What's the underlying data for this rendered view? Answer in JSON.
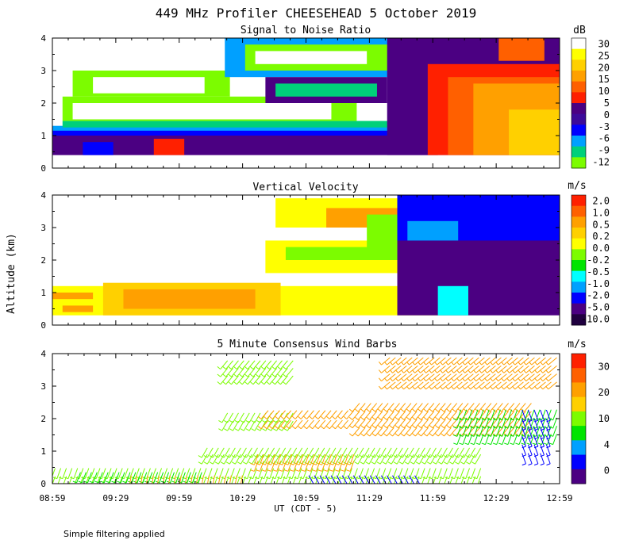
{
  "figure": {
    "title": "449 MHz Profiler CHEESEHEAD  5 October 2019",
    "xlabel": "UT  (CDT - 5)",
    "ylabel": "Altitude (km)",
    "footnote": "Simple filtering applied"
  },
  "colors": {
    "white": "#ffffff",
    "lime": "#7cfc00",
    "green": "#00e400",
    "teal_green": "#00d07a",
    "cyan": "#00ffff",
    "sky": "#00a0ff",
    "blue": "#0000ff",
    "blue2": "#2020ff",
    "indigo": "#4010c0",
    "purple": "#4b0082",
    "dark_purple": "#2a0060",
    "red": "#ff2000",
    "orange_red": "#ff6000",
    "orange": "#ffa000",
    "gold": "#ffd000",
    "yellow": "#ffff00",
    "dark": "#200040"
  },
  "chart_data": [
    {
      "id": "snr",
      "type": "heatmap",
      "title": "Signal to Noise Ratio",
      "unit": "dB",
      "x_ticks": [
        "08:59",
        "09:29",
        "09:59",
        "10:29",
        "10:59",
        "11:29",
        "11:59",
        "12:29",
        "12:59"
      ],
      "x_range_hours": [
        8.983,
        12.983
      ],
      "ylim": [
        0,
        4
      ],
      "y_ticks": [
        "0",
        "1",
        "2",
        "3",
        "4"
      ],
      "colorbar": {
        "labels": [
          "30",
          "25",
          "20",
          "15",
          "10",
          "5",
          "0",
          "-3",
          "-6",
          "-9",
          "-12"
        ],
        "colors": [
          "#ffffff",
          "#ffff00",
          "#ffd000",
          "#ffa000",
          "#ff6000",
          "#ff2000",
          "#4b0082",
          "#3c0a9a",
          "#0000ff",
          "#00a0ff",
          "#00d07a",
          "#7cfc00"
        ]
      },
      "regions": [
        {
          "t0": 0.0,
          "t1": 0.76,
          "z0": 0.4,
          "z1": 1.2,
          "color": "#4b0082"
        },
        {
          "t0": 0.06,
          "t1": 0.12,
          "z0": 0.4,
          "z1": 0.8,
          "color": "#0000ff"
        },
        {
          "t0": 0.2,
          "t1": 0.26,
          "z0": 0.4,
          "z1": 0.9,
          "color": "#ff2000"
        },
        {
          "t0": 0.0,
          "t1": 0.8,
          "z0": 1.0,
          "z1": 1.2,
          "color": "#0000ff"
        },
        {
          "t0": 0.0,
          "t1": 0.78,
          "z0": 1.15,
          "z1": 1.3,
          "color": "#00a0ff"
        },
        {
          "t0": 0.02,
          "t1": 0.72,
          "z0": 1.25,
          "z1": 1.45,
          "color": "#00d07a"
        },
        {
          "t0": 0.02,
          "t1": 0.6,
          "z0": 1.45,
          "z1": 2.2,
          "color": "#7cfc00"
        },
        {
          "t0": 0.04,
          "t1": 0.55,
          "z0": 1.5,
          "z1": 2.0,
          "color": "#ffffff"
        },
        {
          "t0": 0.04,
          "t1": 0.35,
          "z0": 2.2,
          "z1": 3.0,
          "color": "#7cfc00"
        },
        {
          "t0": 0.08,
          "t1": 0.3,
          "z0": 2.3,
          "z1": 2.8,
          "color": "#ffffff"
        },
        {
          "t0": 0.34,
          "t1": 0.7,
          "z0": 2.8,
          "z1": 4.0,
          "color": "#00a0ff"
        },
        {
          "t0": 0.38,
          "t1": 0.68,
          "z0": 3.0,
          "z1": 3.8,
          "color": "#7cfc00"
        },
        {
          "t0": 0.4,
          "t1": 0.62,
          "z0": 3.2,
          "z1": 3.6,
          "color": "#ffffff"
        },
        {
          "t0": 0.42,
          "t1": 0.66,
          "z0": 2.0,
          "z1": 2.8,
          "color": "#4b0082"
        },
        {
          "t0": 0.44,
          "t1": 0.64,
          "z0": 2.2,
          "z1": 2.6,
          "color": "#00d07a"
        },
        {
          "t0": 0.66,
          "t1": 1.0,
          "z0": 0.4,
          "z1": 4.2,
          "color": "#4b0082"
        },
        {
          "t0": 0.74,
          "t1": 1.0,
          "z0": 0.4,
          "z1": 3.2,
          "color": "#ff2000"
        },
        {
          "t0": 0.78,
          "t1": 1.0,
          "z0": 0.4,
          "z1": 2.8,
          "color": "#ff6000"
        },
        {
          "t0": 0.83,
          "t1": 1.0,
          "z0": 0.4,
          "z1": 2.6,
          "color": "#ffa000"
        },
        {
          "t0": 0.9,
          "t1": 1.0,
          "z0": 0.4,
          "z1": 1.8,
          "color": "#ffd000"
        },
        {
          "t0": 0.88,
          "t1": 0.97,
          "z0": 3.3,
          "z1": 4.1,
          "color": "#ff6000"
        }
      ]
    },
    {
      "id": "vv",
      "type": "heatmap",
      "title": "Vertical Velocity",
      "unit": "m/s",
      "x_ticks": [
        "08:59",
        "09:29",
        "09:59",
        "10:29",
        "10:59",
        "11:29",
        "11:59",
        "12:29",
        "12:59"
      ],
      "x_range_hours": [
        8.983,
        12.983
      ],
      "ylim": [
        0,
        4
      ],
      "y_ticks": [
        "0",
        "1",
        "2",
        "3",
        "4"
      ],
      "colorbar": {
        "labels": [
          "2.0",
          "1.0",
          "0.5",
          "0.2",
          "0.0",
          "-0.2",
          "-0.5",
          "-1.0",
          "-2.0",
          "-5.0",
          "-10.0"
        ],
        "colors": [
          "#ff2000",
          "#ff6000",
          "#ffa000",
          "#ffd000",
          "#ffff00",
          "#7cfc00",
          "#00e400",
          "#00ffff",
          "#00a0ff",
          "#0000ff",
          "#4b0082",
          "#200040"
        ]
      },
      "regions": [
        {
          "t0": 0.0,
          "t1": 0.82,
          "z0": 0.3,
          "z1": 1.2,
          "color": "#ffff00"
        },
        {
          "t0": 0.0,
          "t1": 0.08,
          "z0": 0.8,
          "z1": 1.0,
          "color": "#ffa000"
        },
        {
          "t0": 0.02,
          "t1": 0.08,
          "z0": 0.4,
          "z1": 0.6,
          "color": "#ffa000"
        },
        {
          "t0": 0.1,
          "t1": 0.45,
          "z0": 0.3,
          "z1": 1.3,
          "color": "#ffd000"
        },
        {
          "t0": 0.14,
          "t1": 0.4,
          "z0": 0.5,
          "z1": 1.1,
          "color": "#ffa000"
        },
        {
          "t0": 0.42,
          "t1": 0.78,
          "z0": 1.6,
          "z1": 2.6,
          "color": "#ffff00"
        },
        {
          "t0": 0.46,
          "t1": 0.74,
          "z0": 2.0,
          "z1": 2.4,
          "color": "#7cfc00"
        },
        {
          "t0": 0.44,
          "t1": 0.7,
          "z0": 3.0,
          "z1": 3.9,
          "color": "#ffff00"
        },
        {
          "t0": 0.54,
          "t1": 0.68,
          "z0": 3.0,
          "z1": 3.6,
          "color": "#ffa000"
        },
        {
          "t0": 0.62,
          "t1": 0.8,
          "z0": 2.2,
          "z1": 3.4,
          "color": "#7cfc00"
        },
        {
          "t0": 0.68,
          "t1": 1.0,
          "z0": 0.3,
          "z1": 4.0,
          "color": "#4b0082"
        },
        {
          "t0": 0.68,
          "t1": 1.0,
          "z0": 2.6,
          "z1": 4.0,
          "color": "#0000ff"
        },
        {
          "t0": 0.7,
          "t1": 0.8,
          "z0": 2.6,
          "z1": 3.2,
          "color": "#00a0ff"
        },
        {
          "t0": 0.76,
          "t1": 0.82,
          "z0": 0.3,
          "z1": 1.2,
          "color": "#00ffff"
        }
      ]
    },
    {
      "id": "wind",
      "type": "wind_barbs",
      "title": "5 Minute Consensus Wind Barbs",
      "unit": "m/s",
      "x_ticks": [
        "08:59",
        "09:29",
        "09:59",
        "10:29",
        "10:59",
        "11:29",
        "11:59",
        "12:29",
        "12:59"
      ],
      "x_range_hours": [
        8.983,
        12.983
      ],
      "ylim": [
        0,
        4
      ],
      "y_ticks": [
        "0",
        "1",
        "2",
        "3",
        "4"
      ],
      "colorbar": {
        "labels": [
          "30",
          "20",
          "10",
          "4",
          "0"
        ],
        "colors": [
          "#ff2000",
          "#ff6000",
          "#ffa000",
          "#ffd000",
          "#7cfc00",
          "#00e400",
          "#00a0ff",
          "#0000ff",
          "#4b0082"
        ]
      },
      "barb_groups": [
        {
          "t0": 0.0,
          "t1": 0.85,
          "z0": 0.1,
          "z1": 0.6,
          "color": "#7cfc00",
          "dir_deg": 200
        },
        {
          "t0": 0.05,
          "t1": 0.3,
          "z0": 0.2,
          "z1": 0.5,
          "color": "#00e400",
          "dir_deg": 200
        },
        {
          "t0": 0.15,
          "t1": 0.38,
          "z0": 0.1,
          "z1": 0.4,
          "color": "#ffa000",
          "dir_deg": 190
        },
        {
          "t0": 0.5,
          "t1": 0.72,
          "z0": 0.1,
          "z1": 0.4,
          "color": "#0000ff",
          "dir_deg": 150
        },
        {
          "t0": 0.3,
          "t1": 0.85,
          "z0": 0.8,
          "z1": 1.2,
          "color": "#7cfc00",
          "dir_deg": 210
        },
        {
          "t0": 0.4,
          "t1": 0.6,
          "z0": 0.6,
          "z1": 1.0,
          "color": "#ffa000",
          "dir_deg": 200
        },
        {
          "t0": 0.6,
          "t1": 0.95,
          "z0": 1.6,
          "z1": 2.6,
          "color": "#ffa000",
          "dir_deg": 220
        },
        {
          "t0": 0.8,
          "t1": 1.0,
          "z0": 1.4,
          "z1": 2.4,
          "color": "#00e400",
          "dir_deg": 200
        },
        {
          "t0": 0.92,
          "t1": 0.98,
          "z0": 0.8,
          "z1": 2.4,
          "color": "#0000ff",
          "dir_deg": 160
        },
        {
          "t0": 0.66,
          "t1": 1.0,
          "z0": 3.0,
          "z1": 4.0,
          "color": "#ffa000",
          "dir_deg": 230
        },
        {
          "t0": 0.34,
          "t1": 0.48,
          "z0": 3.2,
          "z1": 3.9,
          "color": "#7cfc00",
          "dir_deg": 220
        },
        {
          "t0": 0.34,
          "t1": 0.48,
          "z0": 1.8,
          "z1": 2.3,
          "color": "#7cfc00",
          "dir_deg": 210
        },
        {
          "t0": 0.42,
          "t1": 0.6,
          "z0": 1.8,
          "z1": 2.4,
          "color": "#ffa000",
          "dir_deg": 220
        }
      ]
    }
  ]
}
